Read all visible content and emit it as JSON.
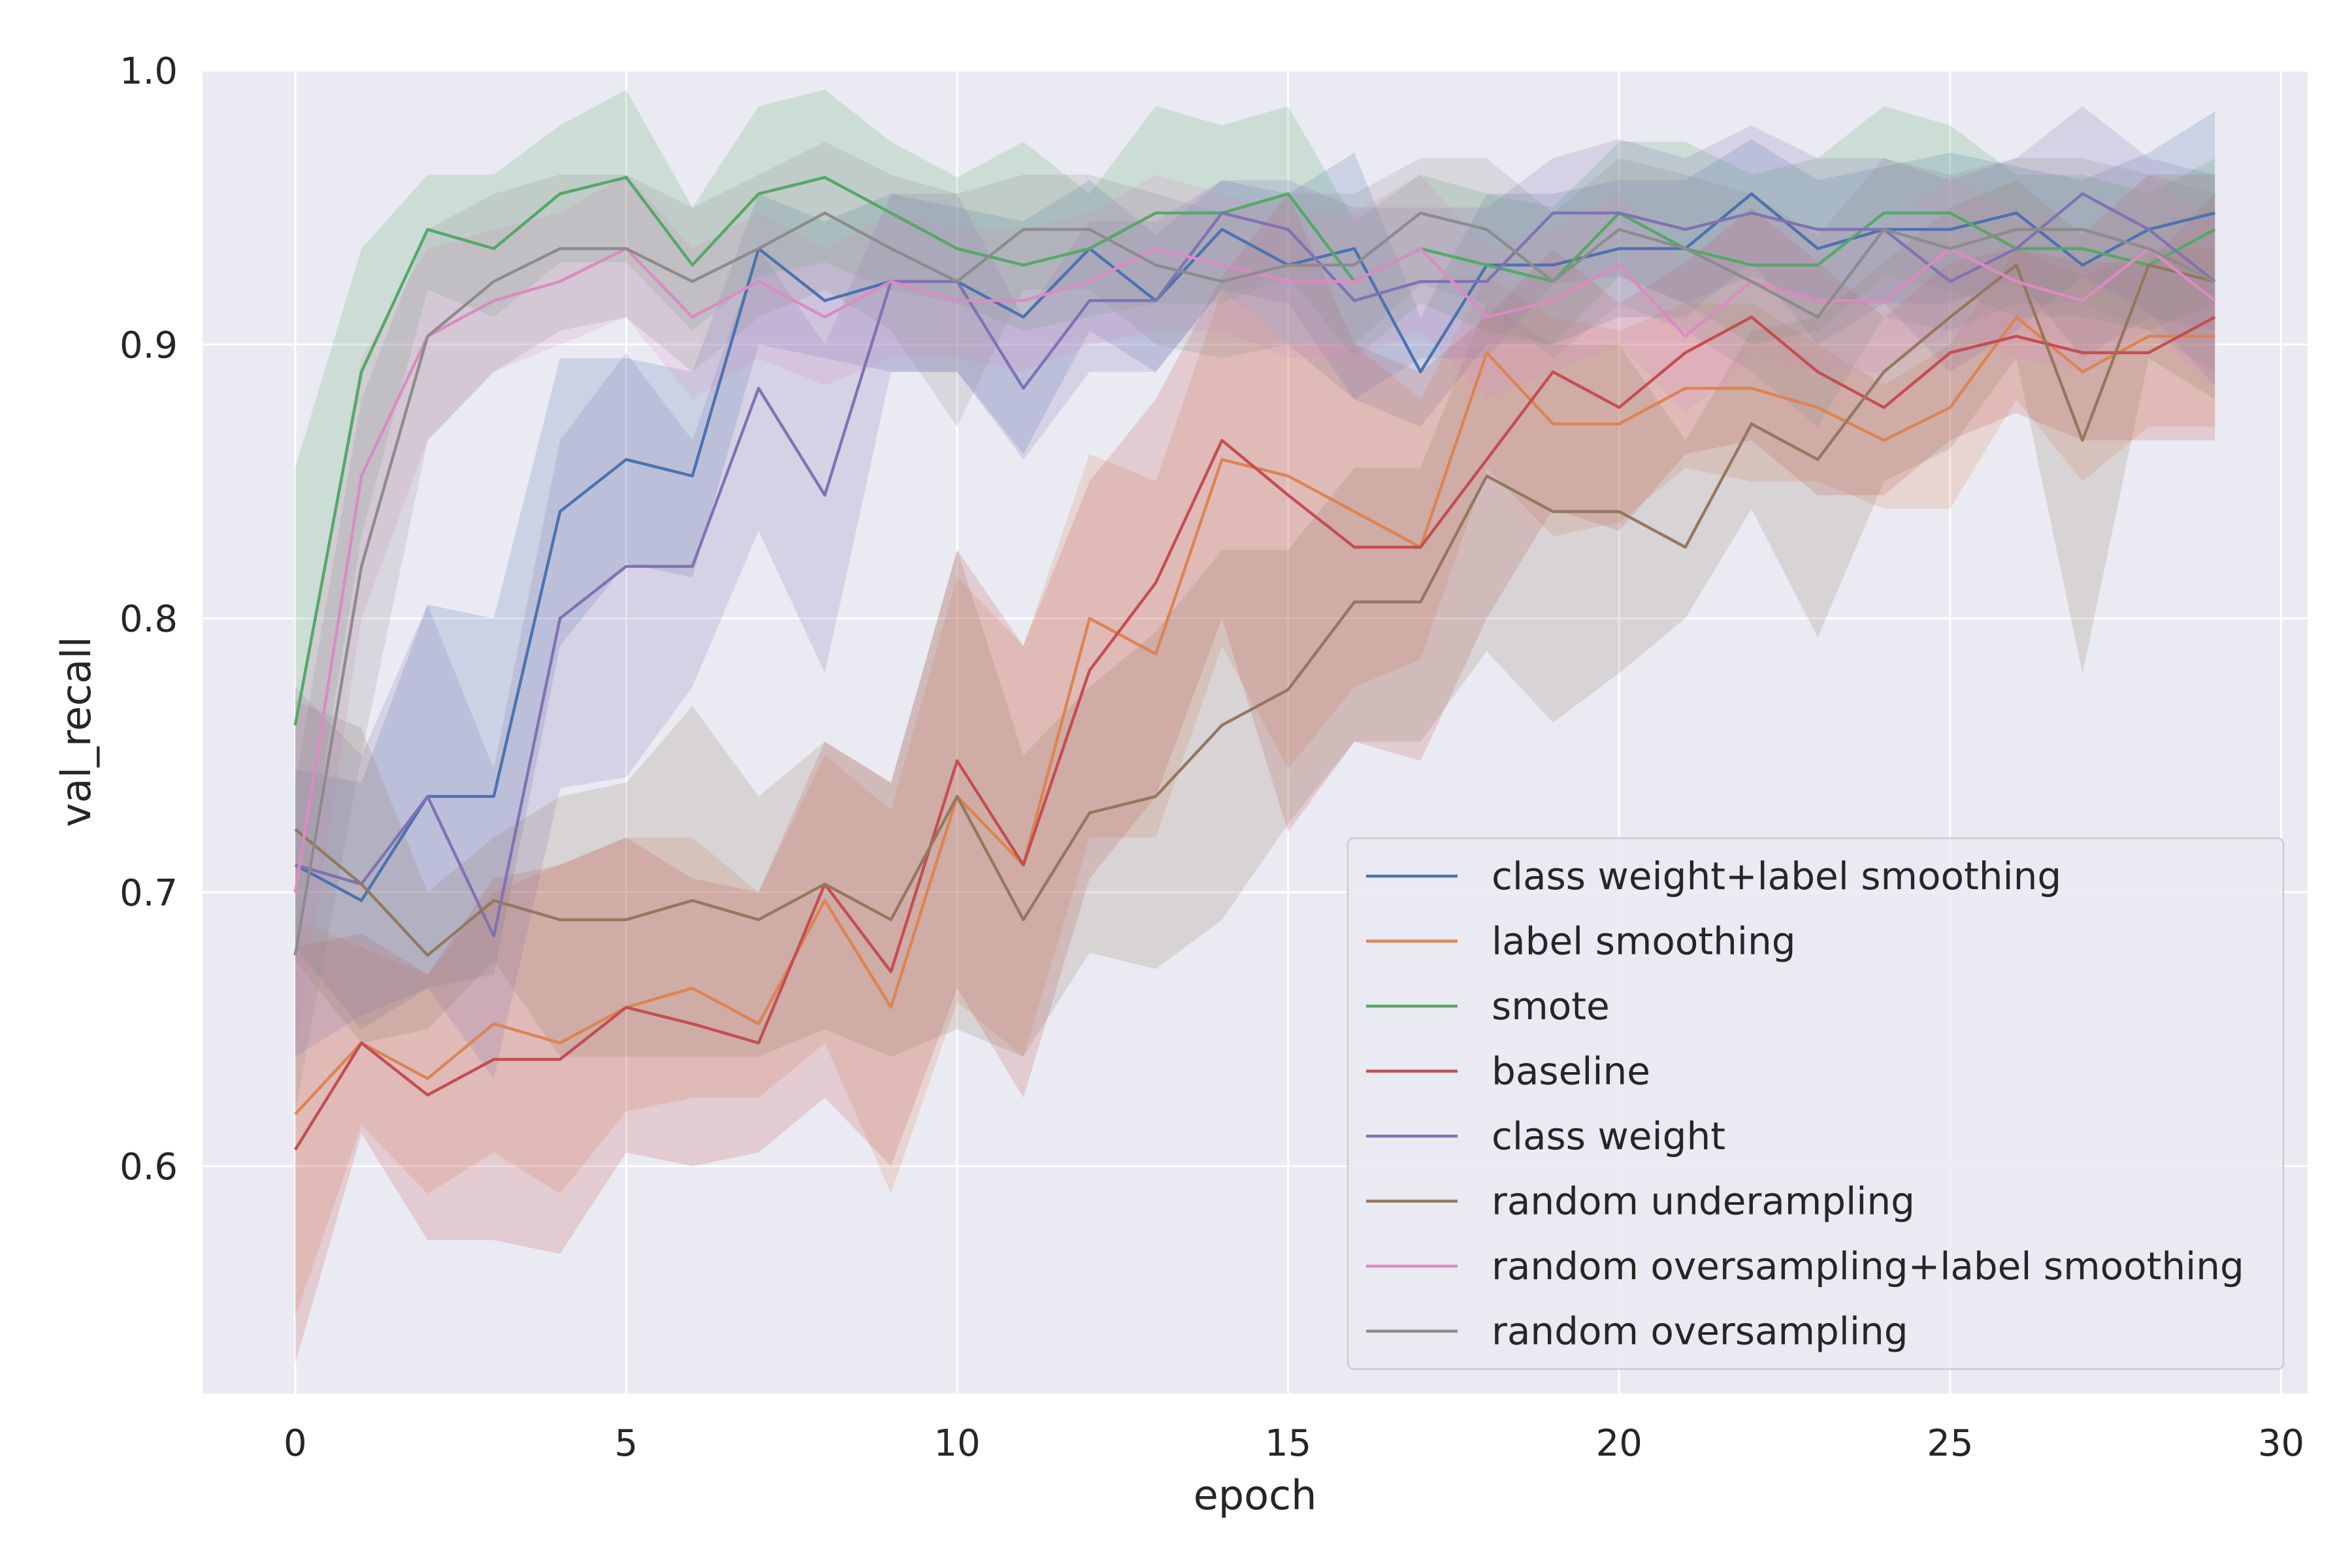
{
  "chart_data": {
    "type": "line",
    "xlabel": "epoch",
    "ylabel": "val_recall",
    "xlim": [
      -1.4,
      30.4
    ],
    "ylim": [
      0.517,
      1.0
    ],
    "xticks": [
      0,
      5,
      10,
      15,
      20,
      25,
      30
    ],
    "xtick_labels": [
      "0",
      "5",
      "10",
      "15",
      "20",
      "25",
      "30"
    ],
    "yticks": [
      0.6,
      0.7,
      0.8,
      0.9,
      1.0
    ],
    "ytick_labels": [
      "0.6",
      "0.7",
      "0.8",
      "0.9",
      "1.0"
    ],
    "grid": true,
    "background": "#eaeaf2",
    "legend_position": "lower-right",
    "x": [
      0,
      1,
      2,
      3,
      4,
      5,
      6,
      7,
      8,
      9,
      10,
      11,
      12,
      13,
      14,
      15,
      16,
      17,
      18,
      19,
      20,
      21,
      22,
      23,
      24,
      25,
      26,
      27,
      28,
      29
    ],
    "series": [
      {
        "name": "class weight+label smoothing",
        "color": "#4c72b0",
        "values": [
          0.71,
          0.697,
          0.735,
          0.735,
          0.839,
          0.858,
          0.852,
          0.935,
          0.916,
          0.923,
          0.923,
          0.91,
          0.935,
          0.916,
          0.942,
          0.929,
          0.935,
          0.89,
          0.929,
          0.929,
          0.935,
          0.935,
          0.955,
          0.935,
          0.942,
          0.942,
          0.948,
          0.929,
          0.942,
          0.948
        ],
        "lower": [
          0.68,
          0.65,
          0.665,
          0.67,
          0.79,
          0.82,
          0.815,
          0.9,
          0.895,
          0.89,
          0.89,
          0.86,
          0.905,
          0.89,
          0.92,
          0.9,
          0.88,
          0.87,
          0.9,
          0.9,
          0.91,
          0.91,
          0.93,
          0.9,
          0.915,
          0.915,
          0.925,
          0.895,
          0.91,
          0.905
        ],
        "upper": [
          0.745,
          0.74,
          0.805,
          0.8,
          0.895,
          0.895,
          0.89,
          0.955,
          0.945,
          0.955,
          0.95,
          0.945,
          0.96,
          0.94,
          0.96,
          0.955,
          0.97,
          0.91,
          0.955,
          0.955,
          0.96,
          0.96,
          0.975,
          0.96,
          0.965,
          0.97,
          0.965,
          0.96,
          0.97,
          0.985
        ]
      },
      {
        "name": "label smoothing",
        "color": "#dd8452",
        "values": [
          0.619,
          0.645,
          0.632,
          0.652,
          0.645,
          0.658,
          0.665,
          0.652,
          0.697,
          0.658,
          0.735,
          0.71,
          0.8,
          0.787,
          0.858,
          0.852,
          0.839,
          0.826,
          0.897,
          0.871,
          0.871,
          0.884,
          0.884,
          0.877,
          0.865,
          0.877,
          0.91,
          0.89,
          0.903,
          0.903
        ],
        "lower": [
          0.545,
          0.615,
          0.59,
          0.605,
          0.59,
          0.62,
          0.625,
          0.625,
          0.645,
          0.59,
          0.66,
          0.64,
          0.72,
          0.72,
          0.79,
          0.745,
          0.775,
          0.785,
          0.855,
          0.83,
          0.835,
          0.855,
          0.85,
          0.85,
          0.84,
          0.84,
          0.88,
          0.85,
          0.87,
          0.87
        ],
        "upper": [
          0.69,
          0.68,
          0.67,
          0.7,
          0.71,
          0.72,
          0.72,
          0.7,
          0.75,
          0.73,
          0.815,
          0.79,
          0.86,
          0.85,
          0.92,
          0.9,
          0.9,
          0.88,
          0.925,
          0.91,
          0.905,
          0.915,
          0.915,
          0.9,
          0.885,
          0.9,
          0.935,
          0.925,
          0.935,
          0.935
        ]
      },
      {
        "name": "smote",
        "color": "#55a868",
        "values": [
          0.761,
          0.89,
          0.942,
          0.935,
          0.955,
          0.961,
          0.929,
          0.955,
          0.961,
          0.948,
          0.935,
          0.929,
          0.935,
          0.948,
          0.948,
          0.955,
          0.923,
          0.935,
          0.929,
          0.923,
          0.948,
          0.935,
          0.929,
          0.929,
          0.948,
          0.948,
          0.935,
          0.935,
          0.929,
          0.942
        ],
        "lower": [
          0.68,
          0.83,
          0.92,
          0.91,
          0.93,
          0.93,
          0.905,
          0.925,
          0.93,
          0.92,
          0.915,
          0.905,
          0.91,
          0.915,
          0.915,
          0.925,
          0.895,
          0.915,
          0.905,
          0.9,
          0.925,
          0.915,
          0.9,
          0.905,
          0.925,
          0.92,
          0.91,
          0.91,
          0.905,
          0.915
        ],
        "upper": [
          0.855,
          0.935,
          0.962,
          0.962,
          0.98,
          0.993,
          0.95,
          0.987,
          0.993,
          0.974,
          0.961,
          0.974,
          0.955,
          0.987,
          0.98,
          0.987,
          0.945,
          0.962,
          0.955,
          0.95,
          0.974,
          0.974,
          0.962,
          0.968,
          0.987,
          0.98,
          0.962,
          0.962,
          0.955,
          0.968
        ]
      },
      {
        "name": "baseline",
        "color": "#c44e52",
        "values": [
          0.606,
          0.645,
          0.626,
          0.639,
          0.639,
          0.658,
          0.652,
          0.645,
          0.703,
          0.671,
          0.748,
          0.71,
          0.781,
          0.813,
          0.865,
          0.845,
          0.826,
          0.826,
          0.858,
          0.89,
          0.877,
          0.897,
          0.91,
          0.89,
          0.877,
          0.897,
          0.903,
          0.897,
          0.897,
          0.91
        ],
        "lower": [
          0.528,
          0.612,
          0.573,
          0.573,
          0.568,
          0.605,
          0.6,
          0.605,
          0.625,
          0.6,
          0.665,
          0.625,
          0.705,
          0.735,
          0.8,
          0.722,
          0.755,
          0.748,
          0.8,
          0.84,
          0.832,
          0.86,
          0.865,
          0.845,
          0.845,
          0.865,
          0.875,
          0.865,
          0.865,
          0.865
        ],
        "upper": [
          0.68,
          0.685,
          0.67,
          0.705,
          0.71,
          0.72,
          0.705,
          0.7,
          0.755,
          0.74,
          0.825,
          0.79,
          0.85,
          0.88,
          0.925,
          0.955,
          0.9,
          0.89,
          0.91,
          0.935,
          0.915,
          0.93,
          0.95,
          0.93,
          0.91,
          0.93,
          0.935,
          0.93,
          0.93,
          0.955
        ]
      },
      {
        "name": "class weight",
        "color": "#8172b3",
        "values": [
          0.71,
          0.703,
          0.735,
          0.684,
          0.8,
          0.819,
          0.819,
          0.884,
          0.845,
          0.923,
          0.923,
          0.884,
          0.916,
          0.916,
          0.948,
          0.942,
          0.916,
          0.923,
          0.923,
          0.948,
          0.948,
          0.942,
          0.948,
          0.942,
          0.942,
          0.923,
          0.935,
          0.955,
          0.942,
          0.923
        ],
        "lower": [
          0.64,
          0.655,
          0.665,
          0.632,
          0.738,
          0.742,
          0.775,
          0.832,
          0.78,
          0.89,
          0.89,
          0.858,
          0.89,
          0.89,
          0.92,
          0.915,
          0.88,
          0.895,
          0.895,
          0.922,
          0.925,
          0.915,
          0.925,
          0.915,
          0.915,
          0.89,
          0.905,
          0.925,
          0.912,
          0.885
        ],
        "upper": [
          0.775,
          0.75,
          0.805,
          0.745,
          0.865,
          0.897,
          0.865,
          0.935,
          0.9,
          0.955,
          0.955,
          0.91,
          0.945,
          0.945,
          0.96,
          0.96,
          0.95,
          0.95,
          0.95,
          0.968,
          0.975,
          0.968,
          0.98,
          0.968,
          0.968,
          0.96,
          0.968,
          0.987,
          0.968,
          0.962
        ]
      },
      {
        "name": "random underampling",
        "color": "#937860",
        "values": [
          0.723,
          0.703,
          0.677,
          0.697,
          0.69,
          0.69,
          0.697,
          0.69,
          0.703,
          0.69,
          0.735,
          0.69,
          0.729,
          0.735,
          0.761,
          0.774,
          0.806,
          0.806,
          0.852,
          0.839,
          0.839,
          0.826,
          0.871,
          0.858,
          0.89,
          0.91,
          0.929,
          0.865,
          0.929,
          0.923
        ],
        "lower": [
          0.675,
          0.645,
          0.65,
          0.675,
          0.64,
          0.64,
          0.64,
          0.64,
          0.65,
          0.64,
          0.65,
          0.64,
          0.678,
          0.672,
          0.69,
          0.725,
          0.755,
          0.755,
          0.788,
          0.762,
          0.78,
          0.8,
          0.84,
          0.793,
          0.85,
          0.862,
          0.895,
          0.78,
          0.895,
          0.88
        ],
        "upper": [
          0.77,
          0.76,
          0.7,
          0.72,
          0.735,
          0.74,
          0.768,
          0.735,
          0.755,
          0.74,
          0.825,
          0.75,
          0.775,
          0.795,
          0.825,
          0.825,
          0.855,
          0.855,
          0.915,
          0.9,
          0.9,
          0.865,
          0.905,
          0.91,
          0.93,
          0.95,
          0.96,
          0.94,
          0.962,
          0.962
        ]
      },
      {
        "name": "random oversampling+label smoothing",
        "color": "#da8bc3",
        "values": [
          0.7,
          0.852,
          0.903,
          0.916,
          0.923,
          0.935,
          0.91,
          0.923,
          0.91,
          0.923,
          0.916,
          0.916,
          0.923,
          0.935,
          0.929,
          0.923,
          0.923,
          0.935,
          0.91,
          0.916,
          0.929,
          0.903,
          0.923,
          0.916,
          0.916,
          0.935,
          0.923,
          0.916,
          0.935,
          0.916
        ],
        "lower": [
          0.64,
          0.8,
          0.865,
          0.89,
          0.9,
          0.91,
          0.88,
          0.895,
          0.885,
          0.895,
          0.895,
          0.89,
          0.9,
          0.905,
          0.905,
          0.895,
          0.895,
          0.905,
          0.88,
          0.89,
          0.9,
          0.875,
          0.895,
          0.89,
          0.89,
          0.905,
          0.895,
          0.89,
          0.905,
          0.885
        ],
        "upper": [
          0.76,
          0.895,
          0.935,
          0.942,
          0.948,
          0.962,
          0.935,
          0.948,
          0.935,
          0.948,
          0.942,
          0.942,
          0.948,
          0.962,
          0.955,
          0.948,
          0.948,
          0.962,
          0.935,
          0.942,
          0.955,
          0.93,
          0.948,
          0.942,
          0.942,
          0.962,
          0.948,
          0.942,
          0.962,
          0.945
        ]
      },
      {
        "name": "random oversampling",
        "color": "#8c8c8c",
        "values": [
          0.677,
          0.819,
          0.903,
          0.923,
          0.935,
          0.935,
          0.923,
          0.935,
          0.948,
          0.935,
          0.923,
          0.942,
          0.942,
          0.929,
          0.923,
          0.929,
          0.929,
          0.948,
          0.942,
          0.923,
          0.942,
          0.935,
          0.923,
          0.91,
          0.942,
          0.935,
          0.942,
          0.942,
          0.935,
          0.923
        ],
        "lower": [
          0.62,
          0.75,
          0.865,
          0.89,
          0.905,
          0.91,
          0.89,
          0.91,
          0.92,
          0.905,
          0.87,
          0.92,
          0.92,
          0.9,
          0.895,
          0.9,
          0.9,
          0.922,
          0.915,
          0.895,
          0.915,
          0.905,
          0.89,
          0.87,
          0.91,
          0.905,
          0.915,
          0.915,
          0.905,
          0.89
        ],
        "upper": [
          0.74,
          0.88,
          0.942,
          0.955,
          0.962,
          0.962,
          0.95,
          0.962,
          0.974,
          0.962,
          0.955,
          0.962,
          0.962,
          0.955,
          0.948,
          0.955,
          0.955,
          0.968,
          0.968,
          0.948,
          0.968,
          0.962,
          0.955,
          0.94,
          0.968,
          0.962,
          0.968,
          0.968,
          0.962,
          0.955
        ]
      }
    ]
  }
}
